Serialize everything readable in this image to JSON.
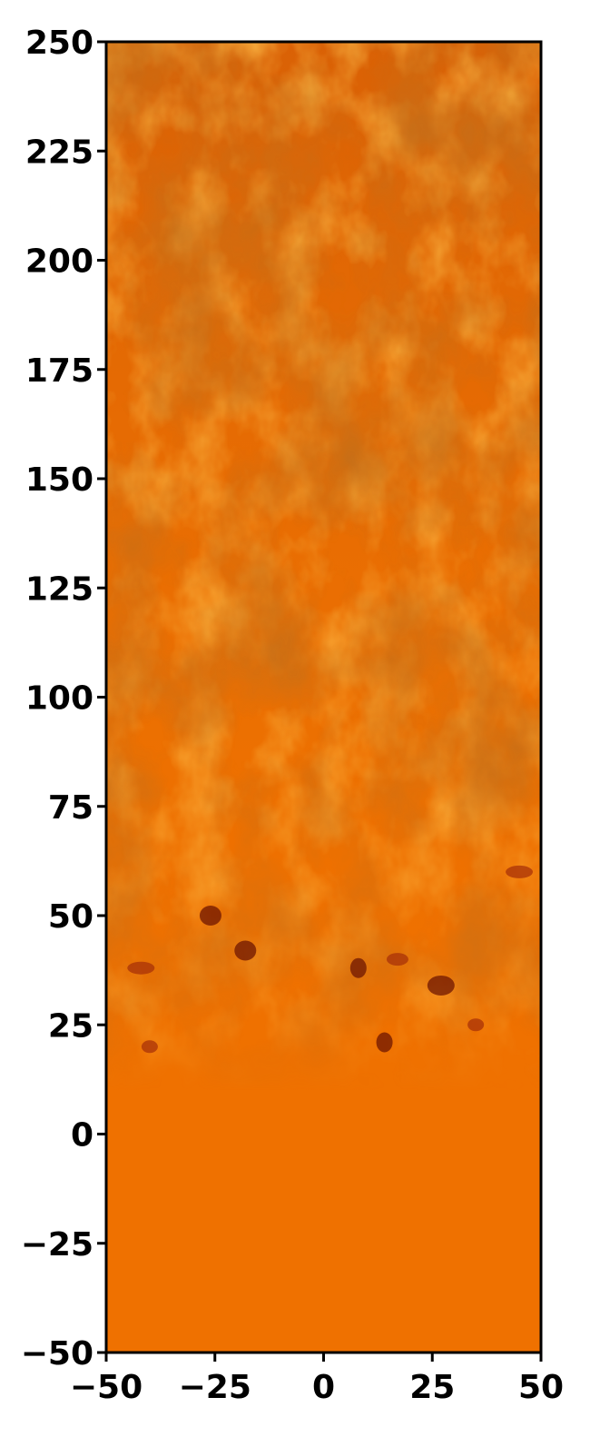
{
  "chart_data": {
    "type": "heatmap",
    "title": "",
    "xlabel": "",
    "ylabel": "",
    "xlim": [
      -50,
      50
    ],
    "ylim": [
      -50,
      250
    ],
    "x_ticks": [
      -50,
      -25,
      0,
      25,
      50
    ],
    "y_ticks": [
      -50,
      -25,
      0,
      25,
      50,
      75,
      100,
      125,
      150,
      175,
      200,
      225,
      250
    ],
    "x_tick_labels": [
      "−50",
      "−25",
      "0",
      "25",
      "50"
    ],
    "y_tick_labels": [
      "−50",
      "−25",
      "0",
      "25",
      "50",
      "75",
      "100",
      "125",
      "150",
      "175",
      "200",
      "225",
      "250"
    ],
    "grid": false,
    "legend": "none",
    "colors": {
      "base": "#ef7100",
      "light": "#f58410",
      "mid": "#d85f06",
      "dark": "#a83208",
      "darkest": "#6e1602",
      "axis": "#000000"
    },
    "field_description_layers": [
      {
        "region": "mixing-front",
        "y_range": [
          18,
          250
        ]
      },
      {
        "region": "uniform-lower",
        "y_range": [
          -50,
          18
        ]
      }
    ]
  }
}
